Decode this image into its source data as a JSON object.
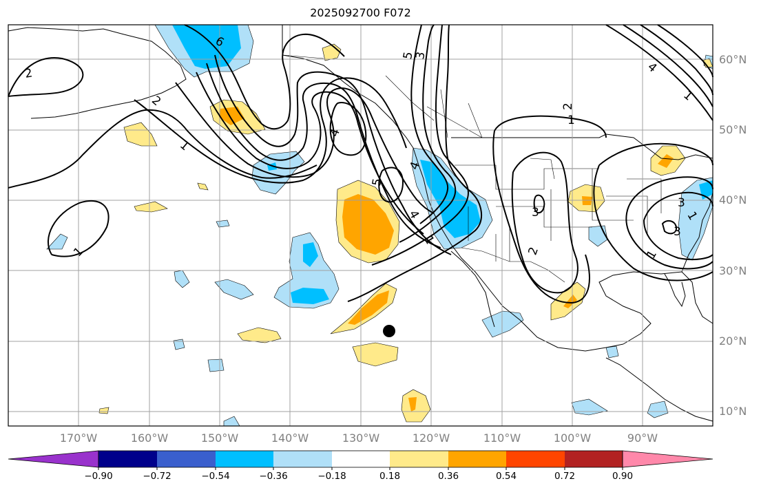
{
  "title": "2025092700 F072",
  "latitude_labels": [
    "60°N",
    "50°N",
    "40°N",
    "30°N",
    "20°N",
    "10°N"
  ],
  "longitude_labels": [
    "170°W",
    "160°W",
    "150°W",
    "140°W",
    "130°W",
    "120°W",
    "110°W",
    "100°W",
    "90°W"
  ],
  "colorbar": {
    "tick_labels": [
      "−0.90",
      "−0.72",
      "−0.54",
      "−0.36",
      "−0.18",
      "0.18",
      "0.36",
      "0.54",
      "0.72",
      "0.90"
    ],
    "colors": [
      "#9932cc",
      "#00008b",
      "#3a5fcd",
      "#00bfff",
      "#b0e0f8",
      "#ffffff",
      "#ffea8a",
      "#ffa500",
      "#ff4500",
      "#b22222",
      "#ff88aa"
    ]
  },
  "contour_labels": [
    "2",
    "1",
    "2",
    "6",
    "1",
    "5",
    "3",
    "4",
    "4",
    "5",
    "4",
    "1",
    "3",
    "2",
    "1",
    "2",
    "3",
    "1",
    "4",
    "3",
    "1",
    "1"
  ],
  "colors": {
    "warm_light": "#ffea8a",
    "warm_mid": "#ffa500",
    "cool_light": "#b0e0f8",
    "cool_mid": "#00bfff",
    "contour": "#000000",
    "grid": "#a0a0a0"
  }
}
